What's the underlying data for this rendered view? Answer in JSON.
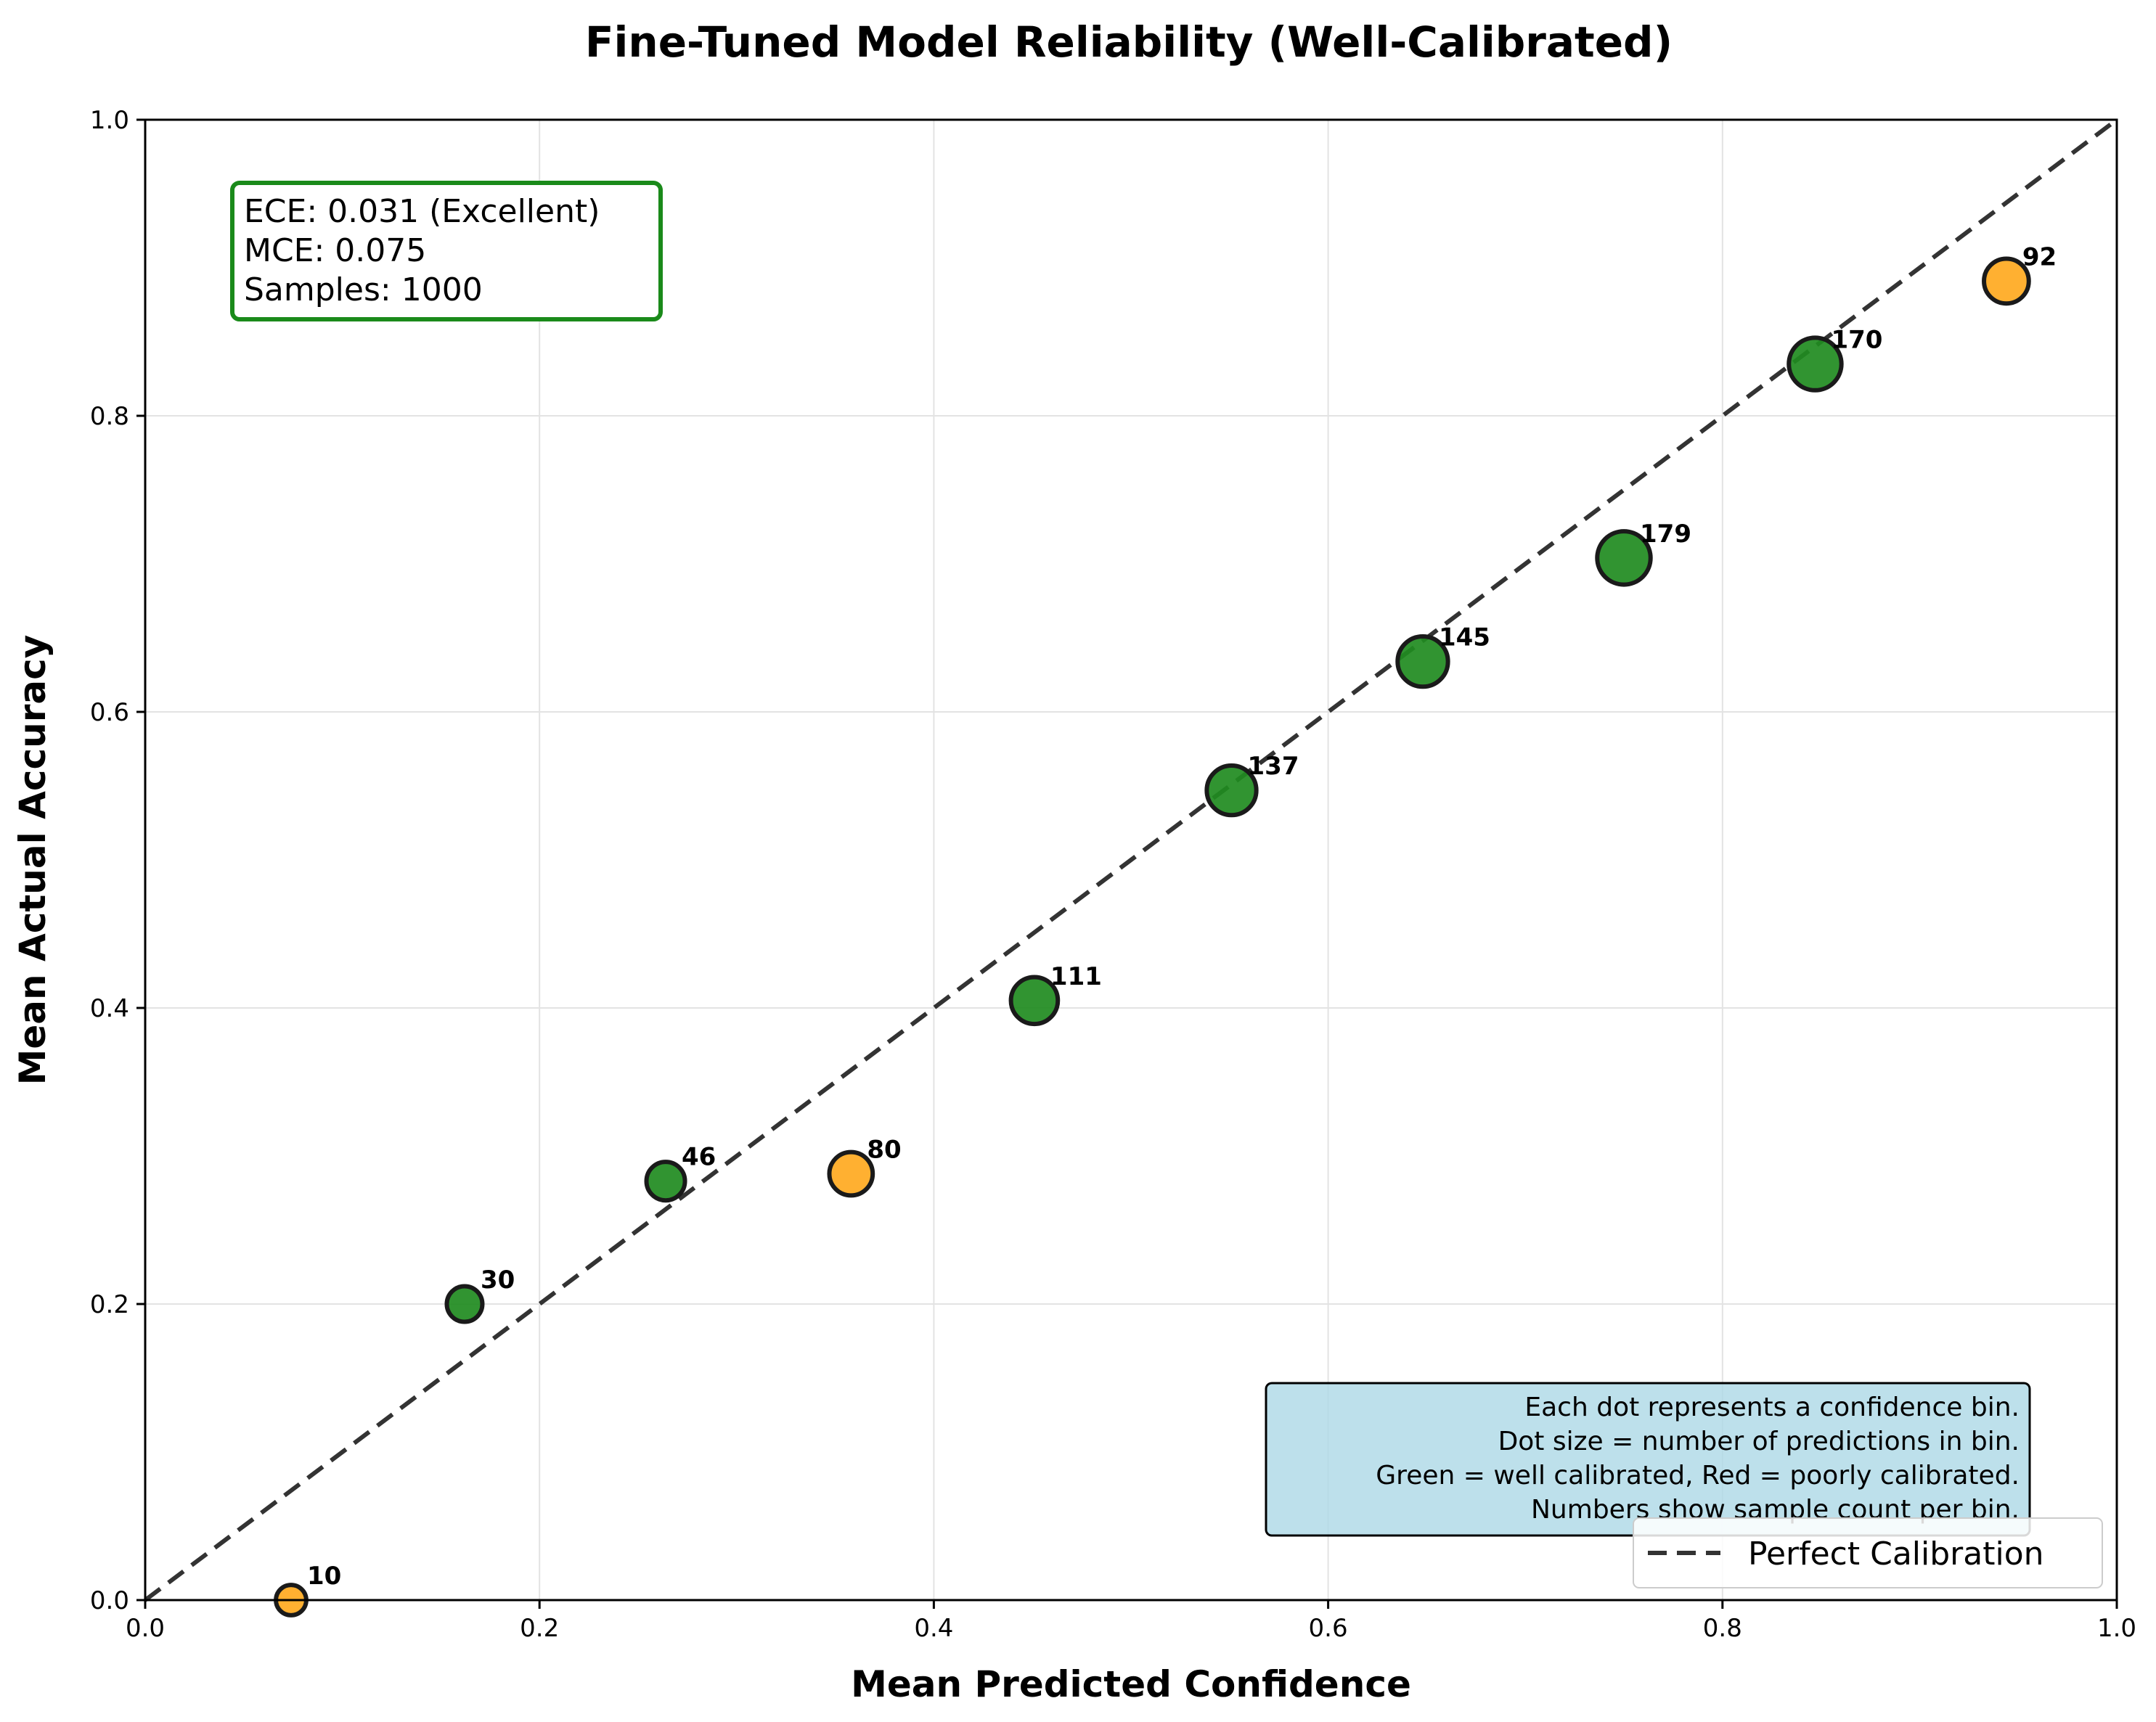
{
  "chart_data": {
    "type": "scatter",
    "title": "Fine-Tuned Model Reliability (Well-Calibrated)",
    "xlabel": "Mean Predicted Confidence",
    "ylabel": "Mean Actual Accuracy",
    "xlim": [
      0.0,
      1.0
    ],
    "ylim": [
      0.0,
      1.0
    ],
    "xticks": [
      "0.0",
      "0.2",
      "0.4",
      "0.6",
      "0.8",
      "1.0"
    ],
    "yticks": [
      "0.0",
      "0.2",
      "0.4",
      "0.6",
      "0.8",
      "1.0"
    ],
    "grid": true,
    "points": [
      {
        "x": 0.074,
        "y": 0.0,
        "count": 10,
        "label": "10",
        "color": "#ffa91f"
      },
      {
        "x": 0.162,
        "y": 0.2,
        "count": 30,
        "label": "30",
        "color": "#1f8b1f"
      },
      {
        "x": 0.264,
        "y": 0.283,
        "count": 46,
        "label": "46",
        "color": "#1f8b1f"
      },
      {
        "x": 0.358,
        "y": 0.288,
        "count": 80,
        "label": "80",
        "color": "#ffa91f"
      },
      {
        "x": 0.451,
        "y": 0.405,
        "count": 111,
        "label": "111",
        "color": "#1f8b1f"
      },
      {
        "x": 0.551,
        "y": 0.547,
        "count": 137,
        "label": "137",
        "color": "#1f8b1f"
      },
      {
        "x": 0.648,
        "y": 0.634,
        "count": 145,
        "label": "145",
        "color": "#1f8b1f"
      },
      {
        "x": 0.75,
        "y": 0.704,
        "count": 179,
        "label": "179",
        "color": "#1f8b1f"
      },
      {
        "x": 0.847,
        "y": 0.835,
        "count": 170,
        "label": "170",
        "color": "#1f8b1f"
      },
      {
        "x": 0.944,
        "y": 0.891,
        "count": 92,
        "label": "92",
        "color": "#ffa91f"
      }
    ],
    "reference_line": {
      "name": "Perfect Calibration",
      "from": [
        0,
        0
      ],
      "to": [
        1,
        1
      ],
      "style": "dashed",
      "color": "#333333"
    },
    "legend": {
      "placement": "bottom-right",
      "entries": [
        "Perfect Calibration"
      ]
    },
    "stats_box": {
      "lines": [
        "ECE: 0.031 (Excellent)",
        "MCE: 0.075",
        "Samples: 1000"
      ],
      "border_color": "#1a8a1a",
      "placement": "top-left"
    },
    "note_box": {
      "lines": [
        "Each dot represents a confidence bin.",
        "Dot size = number of predictions in bin.",
        "Green = well calibrated, Red = poorly calibrated.",
        "Numbers show sample count per bin."
      ],
      "background": "#add8e6",
      "placement": "bottom-right"
    }
  }
}
